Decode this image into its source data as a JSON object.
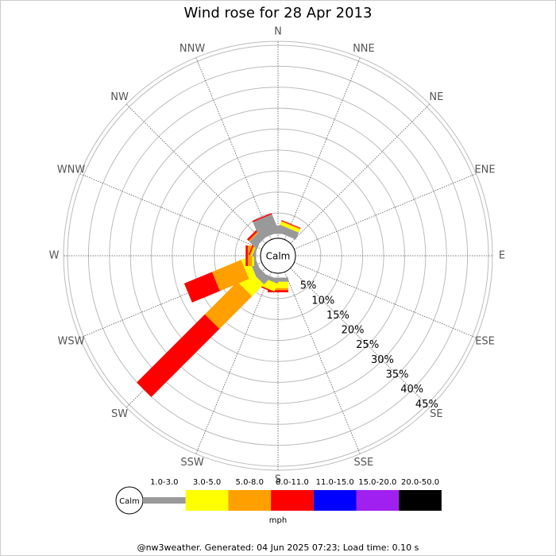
{
  "chart_data": {
    "type": "windrose",
    "title": "Wind rose for 28 Apr 2013",
    "directions": [
      "N",
      "NNE",
      "NE",
      "ENE",
      "E",
      "ESE",
      "SE",
      "SSE",
      "S",
      "SSW",
      "SW",
      "WSW",
      "W",
      "WNW",
      "NW",
      "NNW"
    ],
    "calm_label": "Calm",
    "rlim": [
      0,
      45
    ],
    "rticks": [
      {
        "value": 5,
        "label": "5%"
      },
      {
        "value": 10,
        "label": "10%"
      },
      {
        "value": 15,
        "label": "15%"
      },
      {
        "value": 20,
        "label": "20%"
      },
      {
        "value": 25,
        "label": "25%"
      },
      {
        "value": 30,
        "label": "30%"
      },
      {
        "value": 35,
        "label": "35%"
      },
      {
        "value": 40,
        "label": "40%"
      },
      {
        "value": 45,
        "label": "45%"
      }
    ],
    "series": [
      {
        "name": "1.0-3.0",
        "color": "#999999",
        "values": [
          2,
          1.8,
          0,
          0,
          0,
          0,
          0,
          0,
          1,
          1,
          2,
          1.5,
          0.5,
          0.5,
          2,
          4.5
        ]
      },
      {
        "name": "3.0-5.0",
        "color": "#ffff00",
        "values": [
          0,
          0.8,
          0,
          0,
          0,
          0,
          0,
          0,
          1.5,
          2,
          4,
          1.8,
          0.5,
          0.3,
          0,
          0
        ]
      },
      {
        "name": "5.0-8.0",
        "color": "#ffa000",
        "values": [
          0,
          0.2,
          0,
          0,
          0,
          0,
          0,
          0,
          0.5,
          0,
          11,
          7.5,
          1,
          0.3,
          0.3,
          0
        ]
      },
      {
        "name": "8.0-11.0",
        "color": "#ff0000",
        "values": [
          0,
          0.2,
          0,
          0,
          0,
          0,
          0,
          0,
          0.5,
          0.3,
          23,
          7.2,
          0.5,
          0.3,
          0.5,
          0.3
        ]
      },
      {
        "name": "11.0-15.0",
        "color": "#0000ff",
        "values": [
          0,
          0,
          0,
          0,
          0,
          0,
          0,
          0,
          0,
          0,
          0,
          0,
          0,
          0,
          0,
          0
        ]
      },
      {
        "name": "15.0-20.0",
        "color": "#a020f0",
        "values": [
          0,
          0,
          0,
          0,
          0,
          0,
          0,
          0,
          0,
          0,
          0,
          0,
          0,
          0,
          0,
          0
        ]
      },
      {
        "name": "20.0-50.0",
        "color": "#000000",
        "values": [
          0,
          0,
          0,
          0,
          0,
          0,
          0,
          0,
          0,
          0,
          0,
          0,
          0,
          0,
          0,
          0
        ]
      }
    ],
    "legend_unit": "mph",
    "footer": "@nw3weather. Generated: 04 Jun 2025 07:23; Load time: 0.10 s"
  }
}
